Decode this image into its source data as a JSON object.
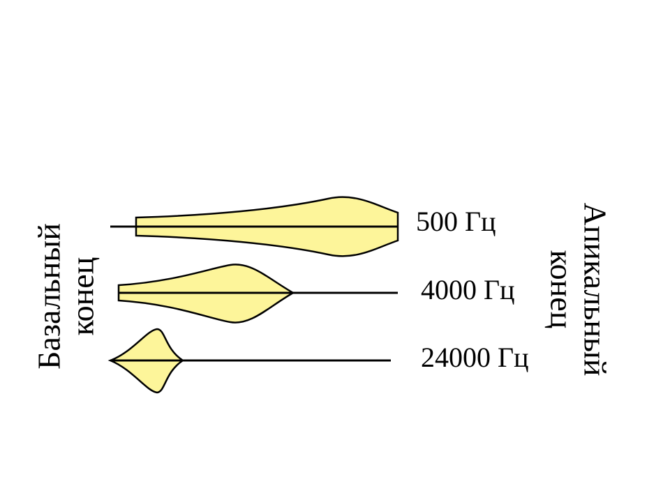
{
  "left_label": {
    "line1": "Базальный",
    "line2": "конец"
  },
  "right_label": {
    "line1": "Апикальный",
    "line2": "конец"
  },
  "envelopes": [
    {
      "label": "500 Гц"
    },
    {
      "label": "4000 Гц"
    },
    {
      "label": "24000 Гц"
    }
  ]
}
